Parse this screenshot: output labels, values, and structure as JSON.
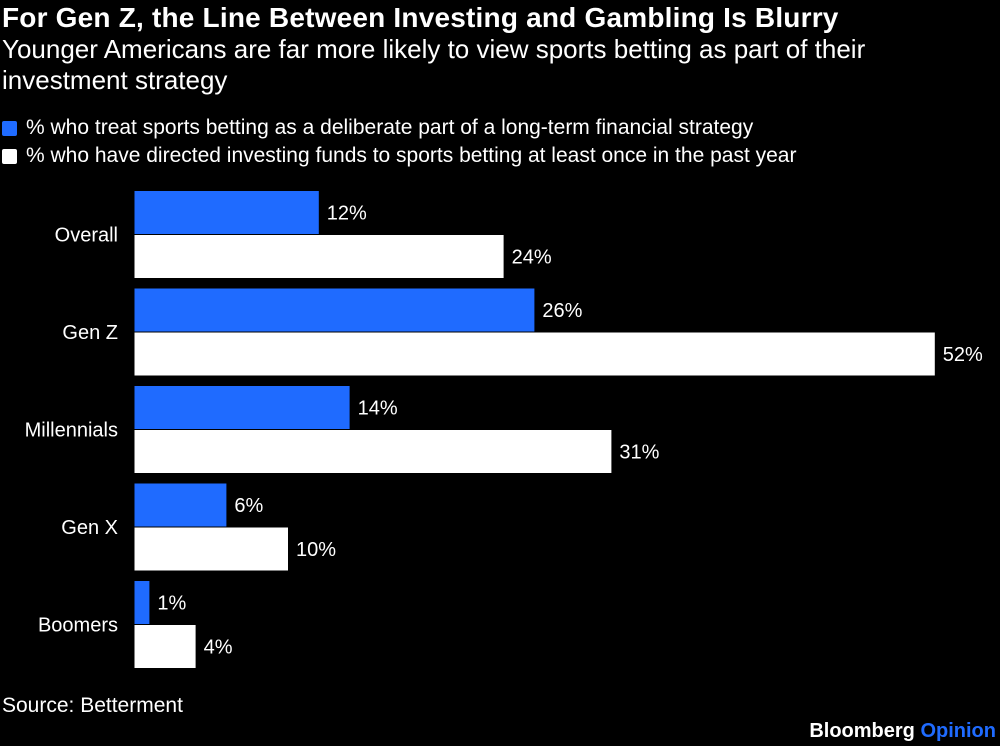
{
  "title": "For Gen Z, the Line Between Investing and Gambling Is Blurry",
  "subtitle": "Younger Americans are far more likely to view sports betting as part of their investment strategy",
  "colors": {
    "background": "#000000",
    "series_1": "#1f6bff",
    "series_2": "#ffffff",
    "text": "#ffffff"
  },
  "legend": [
    {
      "label": "% who treat sports betting as a deliberate part of a long-term financial strategy",
      "color": "#1f6bff"
    },
    {
      "label": "% who have directed investing funds to sports betting at least once in the past year",
      "color": "#ffffff"
    }
  ],
  "chart_data": {
    "type": "bar",
    "orientation": "horizontal",
    "categories": [
      "Overall",
      "Gen Z",
      "Millennials",
      "Gen X",
      "Boomers"
    ],
    "series": [
      {
        "name": "% who treat sports betting as a deliberate part of a long-term financial strategy",
        "values": [
          12,
          26,
          14,
          6,
          1
        ]
      },
      {
        "name": "% who have directed investing funds to sports betting at least once in the past year",
        "values": [
          24,
          52,
          31,
          10,
          4
        ]
      }
    ],
    "value_suffix": "%",
    "xlim": [
      0,
      52
    ],
    "grid": false,
    "legend_position": "top-left"
  },
  "source": "Source: Betterment",
  "brand": {
    "name": "Bloomberg",
    "section": "Opinion"
  }
}
